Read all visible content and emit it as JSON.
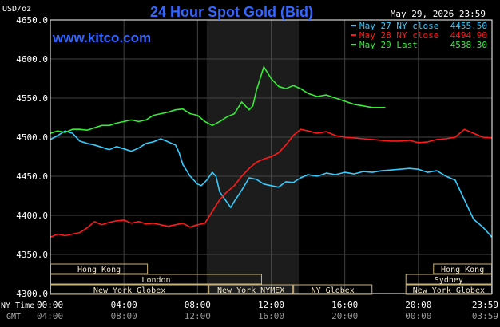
{
  "chart_data": {
    "type": "line",
    "title": "24 Hour Spot Gold (Bid)",
    "watermark": "www.kitco.com",
    "timestamp": "May 29, 2026 23:59",
    "ylabel": "USD/oz",
    "ylim": [
      4300,
      4650
    ],
    "yticks": [
      "4650.0",
      "4600.0",
      "4550.0",
      "4500.0",
      "4450.0",
      "4400.0",
      "4350.0",
      "4300.0"
    ],
    "yvalues": [
      4650,
      4600,
      4550,
      4500,
      4450,
      4400,
      4350,
      4300
    ],
    "xlim": [
      0,
      24
    ],
    "xticks_ny": [
      "00:00",
      "04:00",
      "08:00",
      "12:00",
      "16:00",
      "20:00",
      "23:59"
    ],
    "xticks_gmt": [
      "04:00",
      "08:00",
      "12:00",
      "16:00",
      "20:00",
      "00:00",
      "03:59"
    ],
    "xtick_hours": [
      0,
      4,
      8,
      12,
      16,
      20,
      24
    ],
    "row_label_ny": "NY Time",
    "row_label_gmt": "GMT",
    "highlight_hours": [
      8.5,
      13.5
    ],
    "grid": true,
    "legend_position": "top-right",
    "colors": {
      "may27": "#33ccff",
      "may28": "#ff1a1a",
      "may29": "#33ee33",
      "title": "#3366ff",
      "watermark": "#3366ff",
      "axis": "#ffffff",
      "grid": "#444444",
      "session_box": "#c8b27a",
      "session_text": "#f0e6c8"
    },
    "series": [
      {
        "name": "May 27 NY close",
        "label_value": "4455.50",
        "color": "#33ccff",
        "x": [
          0,
          0.4,
          0.8,
          1.2,
          1.6,
          2.0,
          2.4,
          2.8,
          3.2,
          3.6,
          4.0,
          4.4,
          4.8,
          5.2,
          5.6,
          6.0,
          6.4,
          6.8,
          7.0,
          7.2,
          7.6,
          8.0,
          8.2,
          8.5,
          8.8,
          9.0,
          9.2,
          9.5,
          9.8,
          10.0,
          10.4,
          10.8,
          11.2,
          11.6,
          12.0,
          12.4,
          12.8,
          13.2,
          13.6,
          14.0,
          14.5,
          15.0,
          15.5,
          16.0,
          16.5,
          17.0,
          17.5,
          18.0,
          18.5,
          19.0,
          19.5,
          20.0,
          20.5,
          21.0,
          21.5,
          22.0,
          22.5,
          23.0,
          23.5,
          24.0
        ],
        "y": [
          4497,
          4502,
          4508,
          4505,
          4495,
          4492,
          4490,
          4487,
          4484,
          4488,
          4485,
          4482,
          4486,
          4492,
          4494,
          4498,
          4494,
          4490,
          4480,
          4465,
          4450,
          4440,
          4438,
          4445,
          4455,
          4450,
          4430,
          4420,
          4410,
          4418,
          4432,
          4448,
          4446,
          4440,
          4438,
          4436,
          4443,
          4442,
          4448,
          4452,
          4450,
          4454,
          4452,
          4455,
          4453,
          4456,
          4455,
          4457,
          4458,
          4459,
          4460,
          4459,
          4455,
          4457,
          4450,
          4445,
          4420,
          4395,
          4385,
          4372
        ]
      },
      {
        "name": "May 28 NY close",
        "label_value": "4494.90",
        "color": "#ff1a1a",
        "x": [
          0,
          0.4,
          0.8,
          1.2,
          1.6,
          2.0,
          2.4,
          2.8,
          3.2,
          3.6,
          4.0,
          4.4,
          4.8,
          5.2,
          5.6,
          6.0,
          6.4,
          6.8,
          7.2,
          7.6,
          8.0,
          8.4,
          8.8,
          9.2,
          9.6,
          10.0,
          10.4,
          10.8,
          11.2,
          11.6,
          12.0,
          12.4,
          12.8,
          13.2,
          13.6,
          14.0,
          14.5,
          15.0,
          15.5,
          16.0,
          16.5,
          17.0,
          17.5,
          18.0,
          18.5,
          19.0,
          19.5,
          20.0,
          20.5,
          21.0,
          21.5,
          22.0,
          22.5,
          23.0,
          23.5,
          24.0
        ],
        "y": [
          4372,
          4376,
          4374,
          4376,
          4378,
          4384,
          4392,
          4388,
          4391,
          4393,
          4394,
          4390,
          4392,
          4389,
          4390,
          4388,
          4386,
          4388,
          4390,
          4385,
          4388,
          4390,
          4405,
          4420,
          4430,
          4438,
          4450,
          4460,
          4468,
          4472,
          4475,
          4480,
          4490,
          4502,
          4510,
          4508,
          4505,
          4507,
          4502,
          4500,
          4499,
          4498,
          4497,
          4496,
          4495,
          4495,
          4496,
          4493,
          4494,
          4497,
          4498,
          4500,
          4510,
          4505,
          4500,
          4499
        ]
      },
      {
        "name": "May 29 Last",
        "label_value": "4538.30",
        "color": "#33ee33",
        "x": [
          0,
          0.4,
          0.8,
          1.2,
          1.6,
          2.0,
          2.4,
          2.8,
          3.2,
          3.6,
          4.0,
          4.4,
          4.8,
          5.2,
          5.6,
          6.0,
          6.4,
          6.8,
          7.2,
          7.6,
          8.0,
          8.4,
          8.8,
          9.2,
          9.6,
          10.0,
          10.4,
          10.8,
          11.0,
          11.2,
          11.6,
          12.0,
          12.4,
          12.8,
          13.2,
          13.6,
          14.0,
          14.5,
          15.0,
          15.5,
          16.0,
          16.5,
          17.0,
          17.5,
          18.0,
          18.2
        ],
        "y": [
          4505,
          4508,
          4506,
          4510,
          4510,
          4509,
          4512,
          4515,
          4515,
          4518,
          4520,
          4522,
          4520,
          4522,
          4528,
          4530,
          4532,
          4535,
          4536,
          4530,
          4528,
          4520,
          4515,
          4520,
          4526,
          4530,
          4545,
          4535,
          4540,
          4560,
          4590,
          4575,
          4565,
          4562,
          4566,
          4562,
          4556,
          4552,
          4554,
          4550,
          4546,
          4542,
          4540,
          4538,
          4538,
          4538
        ]
      }
    ],
    "sessions": [
      {
        "label": "Hong Kong",
        "row": 0,
        "start": 0,
        "end": 5.3
      },
      {
        "label": "Hong Kong",
        "row": 0,
        "start": 20.8,
        "end": 24
      },
      {
        "label": "London",
        "row": 1,
        "start": 0,
        "end": 11.5
      },
      {
        "label": "Sydney",
        "row": 1,
        "start": 19.3,
        "end": 24
      },
      {
        "label": "New York Globex",
        "row": 2,
        "start": 0,
        "end": 8.6
      },
      {
        "label": "New York NYMEX",
        "row": 2,
        "start": 8.6,
        "end": 13.2
      },
      {
        "label": "NY Globex",
        "row": 2,
        "start": 13.2,
        "end": 17.5
      },
      {
        "label": "New York Globex",
        "row": 2,
        "start": 19.3,
        "end": 24
      }
    ]
  }
}
